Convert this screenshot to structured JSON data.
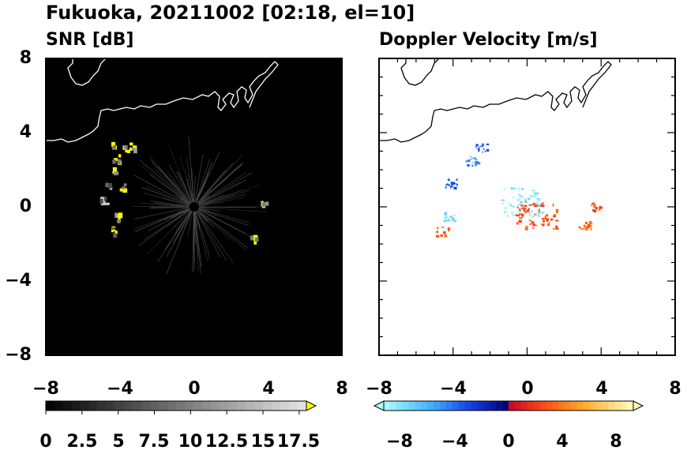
{
  "figure": {
    "title": "Fukuoka, 20211002 [02:18, el=10]"
  },
  "chart_data": [
    {
      "type": "heatmap",
      "title": "SNR [dB]",
      "xlim": [
        -8,
        8
      ],
      "ylim": [
        -8,
        8
      ],
      "x_ticks": [
        "−8",
        "−4",
        "0",
        "4",
        "8"
      ],
      "y_ticks": [
        "8",
        "4",
        "0",
        "−4",
        "−8"
      ],
      "background": "#000000",
      "colorbar": {
        "range": [
          0,
          18.75
        ],
        "extend": "max",
        "tick_labels": [
          "0",
          "2.5",
          "5",
          "7.5",
          "10",
          "12.5",
          "15",
          "17.5"
        ]
      },
      "echoes": [
        {
          "x": -4.4,
          "y": 3.4,
          "snr": 18
        },
        {
          "x": -3.7,
          "y": 3.1,
          "snr": 18
        },
        {
          "x": -3.3,
          "y": 3.3,
          "snr": 19
        },
        {
          "x": -4.2,
          "y": 2.6,
          "snr": 17
        },
        {
          "x": -4.4,
          "y": 1.9,
          "snr": 18
        },
        {
          "x": -4.6,
          "y": 1.2,
          "snr": 16
        },
        {
          "x": -3.8,
          "y": 1.1,
          "snr": 19
        },
        {
          "x": -4.9,
          "y": 0.3,
          "snr": 15
        },
        {
          "x": -4.1,
          "y": -0.5,
          "snr": 19
        },
        {
          "x": -4.4,
          "y": -1.3,
          "snr": 17
        },
        {
          "x": 3.8,
          "y": 0.1,
          "snr": 19
        },
        {
          "x": 3.2,
          "y": -1.6,
          "snr": 19
        }
      ]
    },
    {
      "type": "heatmap",
      "title": "Doppler Velocity [m/s]",
      "xlim": [
        -8,
        8
      ],
      "ylim": [
        -8,
        8
      ],
      "x_ticks": [
        "−8",
        "−4",
        "0",
        "4",
        "8"
      ],
      "y_ticks": [],
      "background": "#ffffff",
      "colorbar": {
        "range": [
          -10,
          10
        ],
        "extend": "both",
        "tick_labels": [
          "−8",
          "−4",
          "0",
          "4",
          "8"
        ]
      },
      "echoes": [
        {
          "x": -2.5,
          "y": 3.2,
          "vel": -4
        },
        {
          "x": -3.0,
          "y": 2.5,
          "vel": -5
        },
        {
          "x": -4.1,
          "y": 1.3,
          "vel": -4
        },
        {
          "x": -4.2,
          "y": -0.5,
          "vel": -8
        },
        {
          "x": -4.6,
          "y": -1.3,
          "vel": 3
        },
        {
          "x": -0.3,
          "y": 0.3,
          "vel": -9
        },
        {
          "x": 0.5,
          "y": -0.4,
          "vel": 3
        },
        {
          "x": 3.1,
          "y": -1.0,
          "vel": 4
        },
        {
          "x": 3.7,
          "y": 0.0,
          "vel": 3
        }
      ]
    }
  ]
}
